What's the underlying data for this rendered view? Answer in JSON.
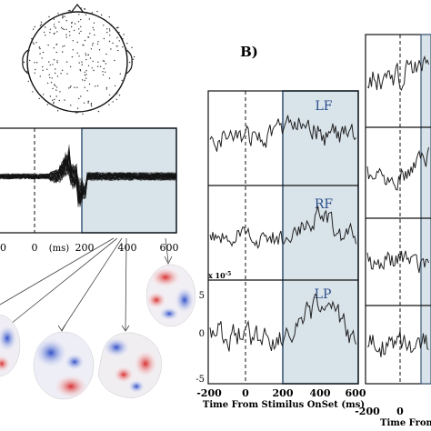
{
  "panel_b_label": "B)",
  "butterfly": {
    "tick_labels": [
      "0",
      "0",
      "(ms)",
      "200",
      "400",
      "600"
    ]
  },
  "channels": [
    {
      "label": "LF"
    },
    {
      "label": "RF"
    },
    {
      "label": "LP"
    }
  ],
  "scale_label": "x 10",
  "scale_exp": "-5",
  "y_ticks": [
    "5",
    "0",
    "-5"
  ],
  "x_ticks_b": [
    "-200",
    "0",
    "200",
    "400",
    "600"
  ],
  "x_axis_label_b": "Time From  Stimilus  OnSet (ms)",
  "right_x_ticks": [
    "-200",
    "0"
  ],
  "right_x_label": "Time From  S",
  "colors": {
    "shade": "#d9e3ea",
    "box": "#3d5a7a",
    "label": "#2c4e8c",
    "trace": "#222222"
  }
}
